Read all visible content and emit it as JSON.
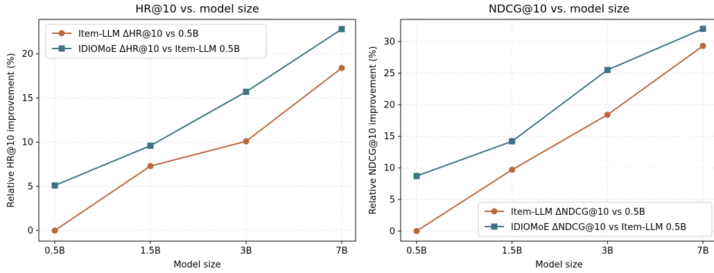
{
  "colors": {
    "series1": "#B8673F",
    "series2": "#3F7380",
    "grid": "#e3e3e3",
    "axis": "#000000"
  },
  "chart_data": [
    {
      "type": "line",
      "title": "HR@10 vs. model size",
      "xlabel": "Model size",
      "ylabel": "Relative HR@10 improvement (%)",
      "categories": [
        "0.5B",
        "1.5B",
        "3B",
        "7B"
      ],
      "ylim": [
        -1.2,
        23.9
      ],
      "yticks": [
        0,
        5,
        10,
        15,
        20
      ],
      "grid": true,
      "legend_position": "upper left",
      "series": [
        {
          "name": "Item-LLM ΔHR@10 vs 0.5B",
          "marker": "circle",
          "values": [
            0.0,
            7.3,
            10.1,
            18.4
          ]
        },
        {
          "name": "IDIOMoE ΔHR@10 vs Item-LLM 0.5B",
          "marker": "square",
          "values": [
            5.1,
            9.6,
            15.7,
            22.8
          ]
        }
      ]
    },
    {
      "type": "line",
      "title": "NDCG@10 vs. model size",
      "xlabel": "Model size",
      "ylabel": "Relative NDCG@10 improvement (%)",
      "categories": [
        "0.5B",
        "1.5B",
        "3B",
        "7B"
      ],
      "ylim": [
        -1.6,
        33.5
      ],
      "yticks": [
        0,
        5,
        10,
        15,
        20,
        25,
        30
      ],
      "grid": true,
      "legend_position": "lower right",
      "series": [
        {
          "name": "Item-LLM ΔNDCG@10 vs 0.5B",
          "marker": "circle",
          "values": [
            0.0,
            9.7,
            18.4,
            29.3
          ]
        },
        {
          "name": "IDIOMoE ΔNDCG@10 vs Item-LLM 0.5B",
          "marker": "square",
          "values": [
            8.7,
            14.2,
            25.5,
            32.0
          ]
        }
      ]
    }
  ]
}
